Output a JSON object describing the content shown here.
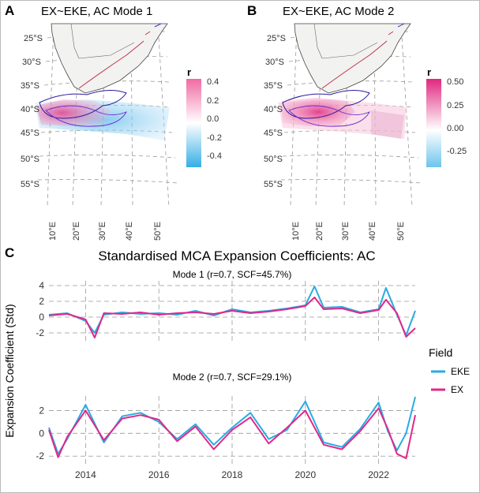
{
  "panels": {
    "a": {
      "letter": "A",
      "title": "EX~EKE, AC Mode 1",
      "legend_title": "r",
      "legend_ticks": [
        "0.4",
        "0.2",
        "0.0",
        "-0.2",
        "-0.4"
      ],
      "lat_labels": [
        "25°S",
        "30°S",
        "35°S",
        "40°S",
        "45°S",
        "50°S",
        "55°S"
      ],
      "lon_labels": [
        "10°E",
        "20°E",
        "30°E",
        "40°E",
        "50°E"
      ]
    },
    "b": {
      "letter": "B",
      "title": "EX~EKE, AC Mode 2",
      "legend_title": "r",
      "legend_ticks": [
        "0.50",
        "0.25",
        "0.00",
        "-0.25"
      ],
      "lat_labels": [
        "25°S",
        "30°S",
        "35°S",
        "40°S",
        "45°S",
        "50°S",
        "55°S"
      ],
      "lon_labels": [
        "10°E",
        "20°E",
        "30°E",
        "40°E",
        "50°E"
      ]
    },
    "c": {
      "letter": "C",
      "title": "Standardised MCA Expansion Coefficients: AC",
      "ylabel": "Expansion Coefficient (Std)",
      "legend_title": "Field",
      "legend_items": [
        {
          "label": "EKE",
          "color": "#29abe2"
        },
        {
          "label": "EX",
          "color": "#e0288a"
        }
      ]
    }
  },
  "colors": {
    "eke": "#29abe2",
    "ex": "#e0288a",
    "land": "#f2f2f0",
    "positive": "#e8287f",
    "negative": "#4ab8e8"
  },
  "chart_data": [
    {
      "type": "line",
      "title": "Mode 1 (r=0.7, SCF=45.7%)",
      "xlabel": "",
      "ylabel": "Expansion Coefficient (Std)",
      "x_range": [
        2013.0,
        2023.0
      ],
      "ylim": [
        -2.6,
        4.2
      ],
      "yticks": [
        -2,
        0,
        2,
        4
      ],
      "xticks": [
        "2014",
        "2016",
        "2018",
        "2020",
        "2022"
      ],
      "x": [
        2013.0,
        2013.5,
        2014.0,
        2014.25,
        2014.5,
        2015.0,
        2015.5,
        2016.0,
        2016.5,
        2017.0,
        2017.5,
        2018.0,
        2018.5,
        2019.0,
        2019.5,
        2020.0,
        2020.25,
        2020.5,
        2021.0,
        2021.5,
        2022.0,
        2022.2,
        2022.5,
        2022.75,
        2023.0
      ],
      "series": [
        {
          "name": "EKE",
          "values": [
            0.3,
            0.5,
            -0.5,
            -2.0,
            0.3,
            0.6,
            0.4,
            0.5,
            0.3,
            0.8,
            0.2,
            1.0,
            0.6,
            0.8,
            1.1,
            1.5,
            3.9,
            1.2,
            1.3,
            0.6,
            1.0,
            3.7,
            0.3,
            -2.3,
            0.8
          ]
        },
        {
          "name": "EX",
          "values": [
            0.2,
            0.4,
            -0.3,
            -2.6,
            0.5,
            0.4,
            0.6,
            0.3,
            0.5,
            0.6,
            0.4,
            0.8,
            0.5,
            0.7,
            1.0,
            1.4,
            2.5,
            1.0,
            1.1,
            0.5,
            0.9,
            2.2,
            0.5,
            -2.5,
            -1.4
          ]
        }
      ]
    },
    {
      "type": "line",
      "title": "Mode 2 (r=0.7, SCF=29.1%)",
      "xlabel": "",
      "ylabel": "Expansion Coefficient (Std)",
      "x_range": [
        2013.0,
        2023.0
      ],
      "ylim": [
        -2.4,
        3.0
      ],
      "yticks": [
        -2,
        0,
        2
      ],
      "xticks": [
        "2014",
        "2016",
        "2018",
        "2020",
        "2022"
      ],
      "x": [
        2013.0,
        2013.25,
        2013.5,
        2014.0,
        2014.5,
        2015.0,
        2015.5,
        2016.0,
        2016.5,
        2017.0,
        2017.5,
        2018.0,
        2018.5,
        2019.0,
        2019.5,
        2020.0,
        2020.5,
        2021.0,
        2021.5,
        2022.0,
        2022.25,
        2022.5,
        2022.75,
        2023.0
      ],
      "series": [
        {
          "name": "EKE",
          "values": [
            0.5,
            -1.8,
            -0.5,
            2.5,
            -0.8,
            1.5,
            1.8,
            1.0,
            -0.5,
            0.8,
            -1.0,
            0.5,
            1.8,
            -0.5,
            0.3,
            2.8,
            -0.8,
            -1.2,
            0.4,
            2.7,
            0.2,
            -1.5,
            0.0,
            3.2
          ]
        },
        {
          "name": "EX",
          "values": [
            0.3,
            -2.1,
            -0.3,
            2.0,
            -0.6,
            1.3,
            1.6,
            1.2,
            -0.7,
            0.6,
            -1.4,
            0.3,
            1.4,
            -0.9,
            0.5,
            2.0,
            -1.0,
            -1.4,
            0.2,
            2.2,
            0.4,
            -1.8,
            -2.2,
            1.6
          ]
        }
      ]
    }
  ]
}
